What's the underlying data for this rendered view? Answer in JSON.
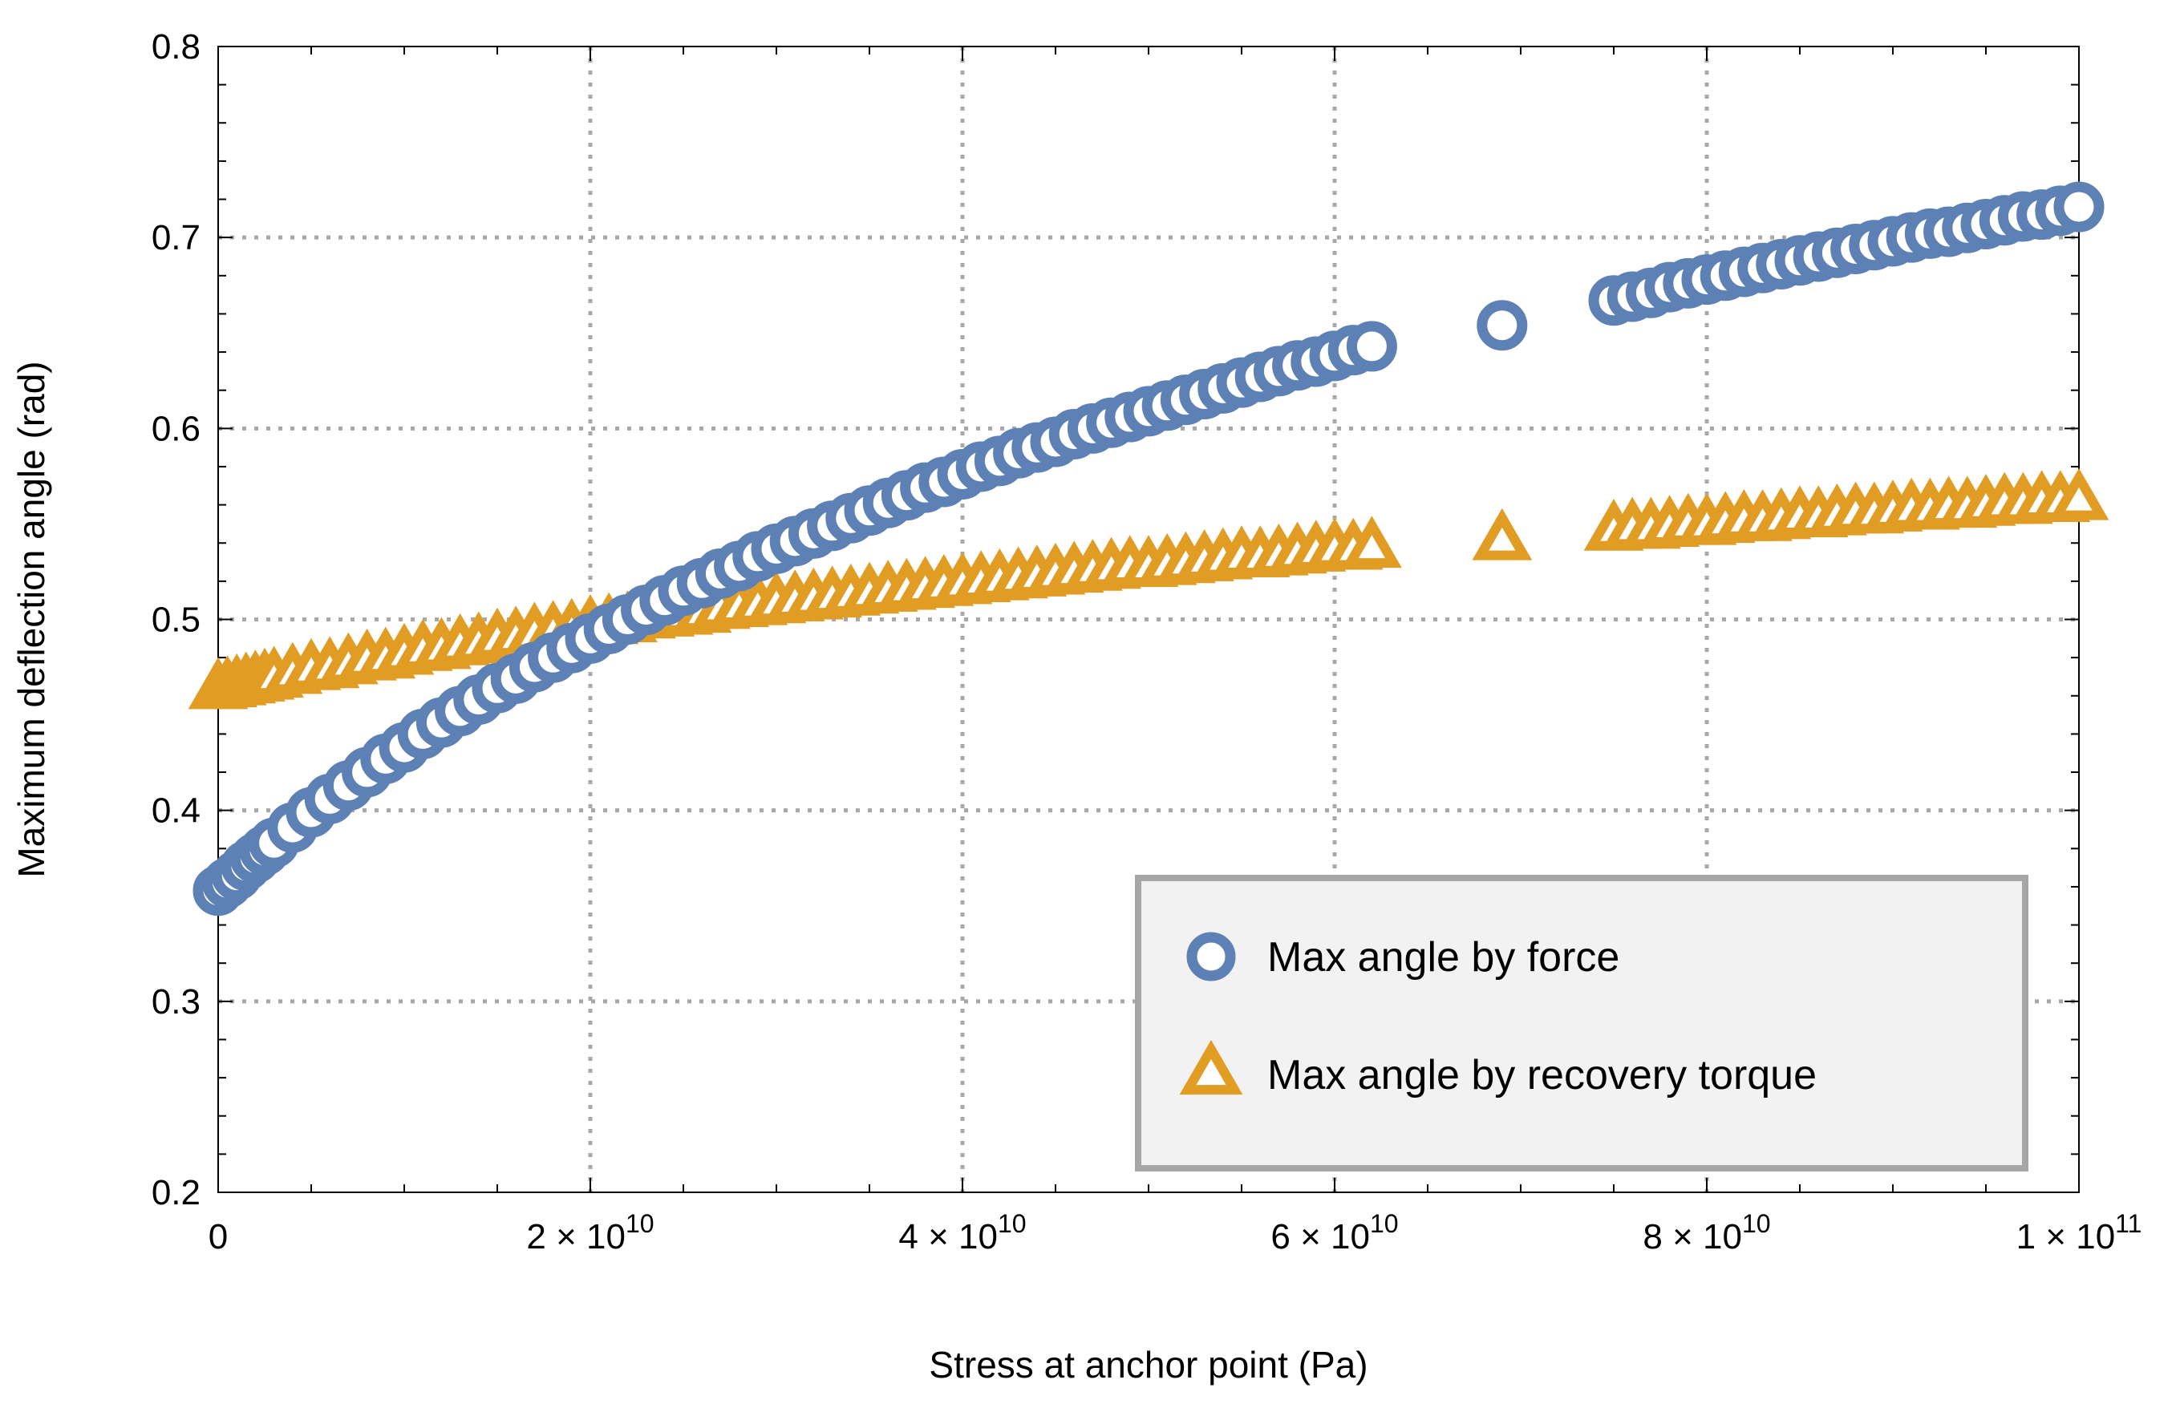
{
  "chart_data": {
    "type": "scatter",
    "title": "",
    "xlabel": "Stress at anchor point (Pa)",
    "ylabel": "Maximum deflection angle (rad)",
    "xlim": [
      0,
      100000000000
    ],
    "ylim": [
      0.2,
      0.8
    ],
    "grid": true,
    "legend_position": "bottom-right",
    "x_ticks": [
      {
        "value": 0,
        "label": "0",
        "mant": "",
        "exp": ""
      },
      {
        "value": 20000000000,
        "label": "2×10^10",
        "mant": "2 × 10",
        "exp": "10"
      },
      {
        "value": 40000000000,
        "label": "4×10^10",
        "mant": "4 × 10",
        "exp": "10"
      },
      {
        "value": 60000000000,
        "label": "6×10^10",
        "mant": "6 × 10",
        "exp": "10"
      },
      {
        "value": 80000000000,
        "label": "8×10^10",
        "mant": "8 × 10",
        "exp": "10"
      },
      {
        "value": 100000000000,
        "label": "1×10^11",
        "mant": "1 × 10",
        "exp": "11"
      }
    ],
    "y_ticks": [
      {
        "value": 0.2,
        "label": "0.2"
      },
      {
        "value": 0.3,
        "label": "0.3"
      },
      {
        "value": 0.4,
        "label": "0.4"
      },
      {
        "value": 0.5,
        "label": "0.5"
      },
      {
        "value": 0.6,
        "label": "0.6"
      },
      {
        "value": 0.7,
        "label": "0.7"
      },
      {
        "value": 0.8,
        "label": "0.8"
      }
    ],
    "series": [
      {
        "name": "Max angle by force",
        "marker": "circle",
        "color": "#5e81b5",
        "points": [
          [
            0,
            0.358
          ],
          [
            500000000,
            0.362
          ],
          [
            1000000000,
            0.366
          ],
          [
            1500000000,
            0.371
          ],
          [
            2000000000,
            0.375
          ],
          [
            2500000000,
            0.379
          ],
          [
            3000000000,
            0.383
          ],
          [
            4000000000,
            0.391
          ],
          [
            5000000000,
            0.399
          ],
          [
            6000000000,
            0.406
          ],
          [
            7000000000,
            0.413
          ],
          [
            8000000000,
            0.42
          ],
          [
            9000000000,
            0.427
          ],
          [
            10000000000,
            0.433
          ],
          [
            11000000000,
            0.44
          ],
          [
            12000000000,
            0.446
          ],
          [
            13000000000,
            0.452
          ],
          [
            14000000000,
            0.458
          ],
          [
            15000000000,
            0.464
          ],
          [
            16000000000,
            0.469
          ],
          [
            17000000000,
            0.475
          ],
          [
            18000000000,
            0.48
          ],
          [
            19000000000,
            0.485
          ],
          [
            20000000000,
            0.49
          ],
          [
            21000000000,
            0.495
          ],
          [
            22000000000,
            0.5
          ],
          [
            23000000000,
            0.505
          ],
          [
            24000000000,
            0.51
          ],
          [
            25000000000,
            0.515
          ],
          [
            26000000000,
            0.519
          ],
          [
            27000000000,
            0.524
          ],
          [
            28000000000,
            0.528
          ],
          [
            29000000000,
            0.533
          ],
          [
            30000000000,
            0.537
          ],
          [
            31000000000,
            0.541
          ],
          [
            32000000000,
            0.545
          ],
          [
            33000000000,
            0.549
          ],
          [
            34000000000,
            0.553
          ],
          [
            35000000000,
            0.557
          ],
          [
            36000000000,
            0.561
          ],
          [
            37000000000,
            0.565
          ],
          [
            38000000000,
            0.569
          ],
          [
            39000000000,
            0.572
          ],
          [
            40000000000,
            0.576
          ],
          [
            41000000000,
            0.58
          ],
          [
            42000000000,
            0.583
          ],
          [
            43000000000,
            0.587
          ],
          [
            44000000000,
            0.59
          ],
          [
            45000000000,
            0.593
          ],
          [
            46000000000,
            0.597
          ],
          [
            47000000000,
            0.6
          ],
          [
            48000000000,
            0.603
          ],
          [
            49000000000,
            0.606
          ],
          [
            50000000000,
            0.609
          ],
          [
            51000000000,
            0.612
          ],
          [
            52000000000,
            0.615
          ],
          [
            53000000000,
            0.618
          ],
          [
            54000000000,
            0.621
          ],
          [
            55000000000,
            0.624
          ],
          [
            56000000000,
            0.627
          ],
          [
            57000000000,
            0.63
          ],
          [
            58000000000,
            0.633
          ],
          [
            59000000000,
            0.635
          ],
          [
            60000000000,
            0.638
          ],
          [
            61000000000,
            0.641
          ],
          [
            62000000000,
            0.643
          ],
          [
            69000000000,
            0.654
          ],
          [
            75000000000,
            0.667
          ],
          [
            76000000000,
            0.669
          ],
          [
            77000000000,
            0.671
          ],
          [
            78000000000,
            0.674
          ],
          [
            79000000000,
            0.676
          ],
          [
            80000000000,
            0.678
          ],
          [
            81000000000,
            0.68
          ],
          [
            82000000000,
            0.682
          ],
          [
            83000000000,
            0.684
          ],
          [
            84000000000,
            0.686
          ],
          [
            85000000000,
            0.688
          ],
          [
            86000000000,
            0.69
          ],
          [
            87000000000,
            0.692
          ],
          [
            88000000000,
            0.694
          ],
          [
            89000000000,
            0.696
          ],
          [
            90000000000,
            0.698
          ],
          [
            91000000000,
            0.7
          ],
          [
            92000000000,
            0.702
          ],
          [
            93000000000,
            0.703
          ],
          [
            94000000000,
            0.705
          ],
          [
            95000000000,
            0.707
          ],
          [
            96000000000,
            0.709
          ],
          [
            97000000000,
            0.711
          ],
          [
            98000000000,
            0.712
          ],
          [
            99000000000,
            0.714
          ],
          [
            100000000000,
            0.716
          ]
        ]
      },
      {
        "name": "Max angle by recovery torque",
        "marker": "triangle",
        "color": "#e19c24",
        "points": [
          [
            0,
            0.463
          ],
          [
            500000000,
            0.464
          ],
          [
            1000000000,
            0.465
          ],
          [
            1500000000,
            0.466
          ],
          [
            2000000000,
            0.467
          ],
          [
            2500000000,
            0.468
          ],
          [
            3000000000,
            0.469
          ],
          [
            4000000000,
            0.471
          ],
          [
            5000000000,
            0.473
          ],
          [
            6000000000,
            0.474
          ],
          [
            7000000000,
            0.476
          ],
          [
            8000000000,
            0.478
          ],
          [
            9000000000,
            0.479
          ],
          [
            10000000000,
            0.481
          ],
          [
            11000000000,
            0.483
          ],
          [
            12000000000,
            0.484
          ],
          [
            13000000000,
            0.486
          ],
          [
            14000000000,
            0.487
          ],
          [
            15000000000,
            0.489
          ],
          [
            16000000000,
            0.49
          ],
          [
            17000000000,
            0.492
          ],
          [
            18000000000,
            0.493
          ],
          [
            19000000000,
            0.494
          ],
          [
            20000000000,
            0.496
          ],
          [
            21000000000,
            0.497
          ],
          [
            22000000000,
            0.498
          ],
          [
            23000000000,
            0.5
          ],
          [
            24000000000,
            0.501
          ],
          [
            25000000000,
            0.502
          ],
          [
            26000000000,
            0.503
          ],
          [
            27000000000,
            0.505
          ],
          [
            28000000000,
            0.506
          ],
          [
            29000000000,
            0.507
          ],
          [
            30000000000,
            0.508
          ],
          [
            31000000000,
            0.509
          ],
          [
            32000000000,
            0.51
          ],
          [
            33000000000,
            0.511
          ],
          [
            34000000000,
            0.512
          ],
          [
            35000000000,
            0.513
          ],
          [
            36000000000,
            0.514
          ],
          [
            37000000000,
            0.515
          ],
          [
            38000000000,
            0.516
          ],
          [
            39000000000,
            0.517
          ],
          [
            40000000000,
            0.518
          ],
          [
            41000000000,
            0.519
          ],
          [
            42000000000,
            0.52
          ],
          [
            43000000000,
            0.521
          ],
          [
            44000000000,
            0.522
          ],
          [
            45000000000,
            0.523
          ],
          [
            46000000000,
            0.524
          ],
          [
            47000000000,
            0.525
          ],
          [
            48000000000,
            0.526
          ],
          [
            49000000000,
            0.527
          ],
          [
            50000000000,
            0.527
          ],
          [
            51000000000,
            0.528
          ],
          [
            52000000000,
            0.529
          ],
          [
            53000000000,
            0.53
          ],
          [
            54000000000,
            0.531
          ],
          [
            55000000000,
            0.532
          ],
          [
            56000000000,
            0.532
          ],
          [
            57000000000,
            0.533
          ],
          [
            58000000000,
            0.534
          ],
          [
            59000000000,
            0.535
          ],
          [
            60000000000,
            0.536
          ],
          [
            61000000000,
            0.536
          ],
          [
            62000000000,
            0.537
          ],
          [
            69000000000,
            0.541
          ],
          [
            75000000000,
            0.546
          ],
          [
            76000000000,
            0.547
          ],
          [
            77000000000,
            0.547
          ],
          [
            78000000000,
            0.548
          ],
          [
            79000000000,
            0.549
          ],
          [
            80000000000,
            0.549
          ],
          [
            81000000000,
            0.55
          ],
          [
            82000000000,
            0.551
          ],
          [
            83000000000,
            0.551
          ],
          [
            84000000000,
            0.552
          ],
          [
            85000000000,
            0.553
          ],
          [
            86000000000,
            0.553
          ],
          [
            87000000000,
            0.554
          ],
          [
            88000000000,
            0.555
          ],
          [
            89000000000,
            0.555
          ],
          [
            90000000000,
            0.556
          ],
          [
            91000000000,
            0.557
          ],
          [
            92000000000,
            0.557
          ],
          [
            93000000000,
            0.558
          ],
          [
            94000000000,
            0.558
          ],
          [
            95000000000,
            0.559
          ],
          [
            96000000000,
            0.56
          ],
          [
            97000000000,
            0.56
          ],
          [
            98000000000,
            0.561
          ],
          [
            99000000000,
            0.561
          ],
          [
            100000000000,
            0.562
          ]
        ]
      }
    ]
  }
}
